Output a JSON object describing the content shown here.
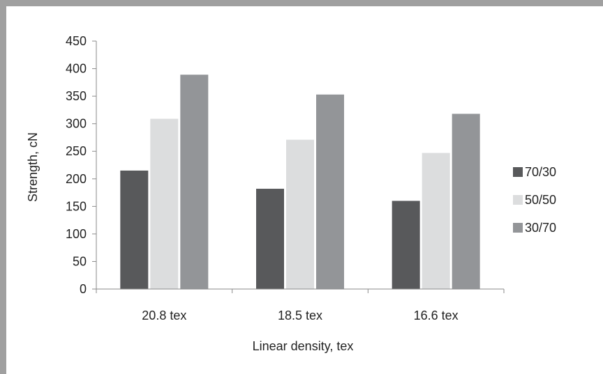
{
  "chart_data": {
    "type": "bar",
    "title": "",
    "xlabel": "Linear density, tex",
    "ylabel": "Strength, cN",
    "ylim": [
      0,
      450
    ],
    "yticks": [
      0,
      50,
      100,
      150,
      200,
      250,
      300,
      350,
      400,
      450
    ],
    "categories": [
      "20.8 tex",
      "18.5 tex",
      "16.6 tex"
    ],
    "series": [
      {
        "name": "70/30",
        "color": "#58595b",
        "values": [
          215,
          182,
          160
        ]
      },
      {
        "name": "50/50",
        "color": "#dcddde",
        "values": [
          309,
          271,
          247
        ]
      },
      {
        "name": "30/70",
        "color": "#939598",
        "values": [
          389,
          353,
          318
        ]
      }
    ],
    "legend_position": "right",
    "grid": false
  }
}
